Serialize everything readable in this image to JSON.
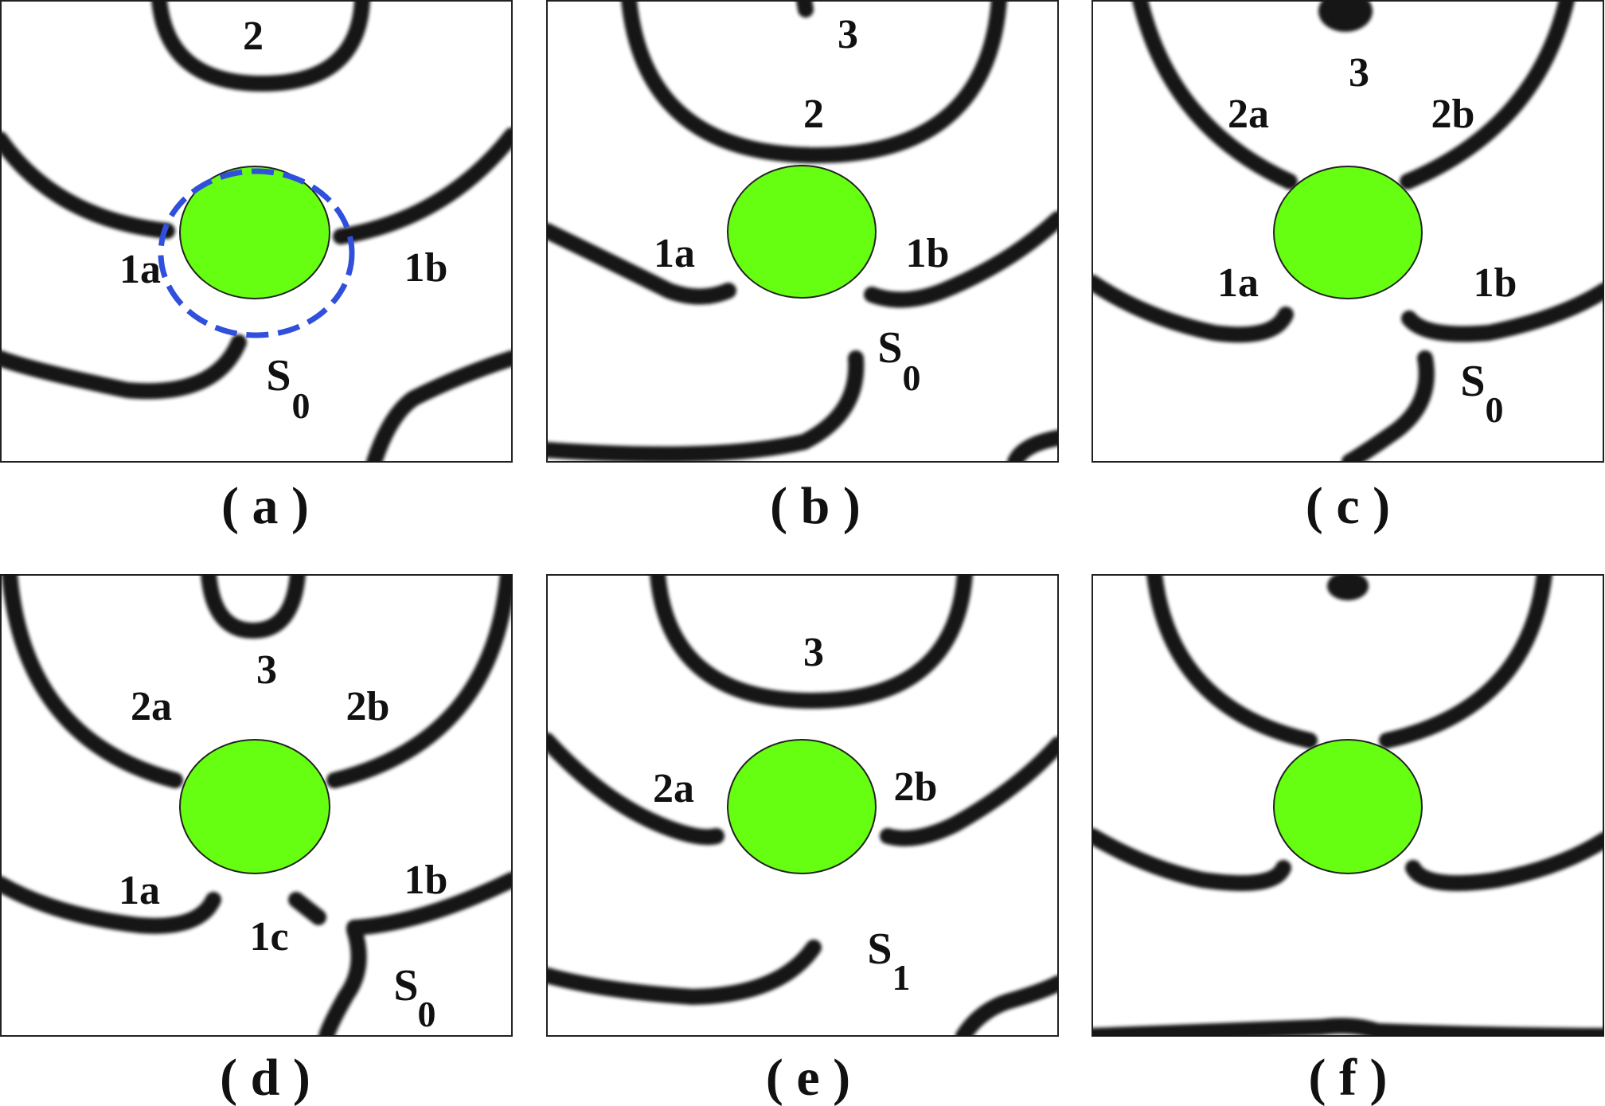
{
  "colors": {
    "obstacle_fill": "#66ff11",
    "wave": "#141414",
    "dashed_circle": "#2f4fdc",
    "frame": "#222222"
  },
  "panels": [
    {
      "caption": "( a )",
      "labels": [
        "2",
        "1a",
        "1b",
        "S",
        "0"
      ]
    },
    {
      "caption": "( b )",
      "labels": [
        "3",
        "2",
        "1a",
        "1b",
        "S",
        "0"
      ]
    },
    {
      "caption": "( c )",
      "labels": [
        "3",
        "2a",
        "2b",
        "1a",
        "1b",
        "S",
        "0"
      ]
    },
    {
      "caption": "( d )",
      "labels": [
        "3",
        "2a",
        "2b",
        "1a",
        "1b",
        "1c",
        "S",
        "0"
      ]
    },
    {
      "caption": "( e )",
      "labels": [
        "3",
        "2a",
        "2b",
        "S",
        "1"
      ]
    },
    {
      "caption": "( f )",
      "labels": []
    }
  ]
}
